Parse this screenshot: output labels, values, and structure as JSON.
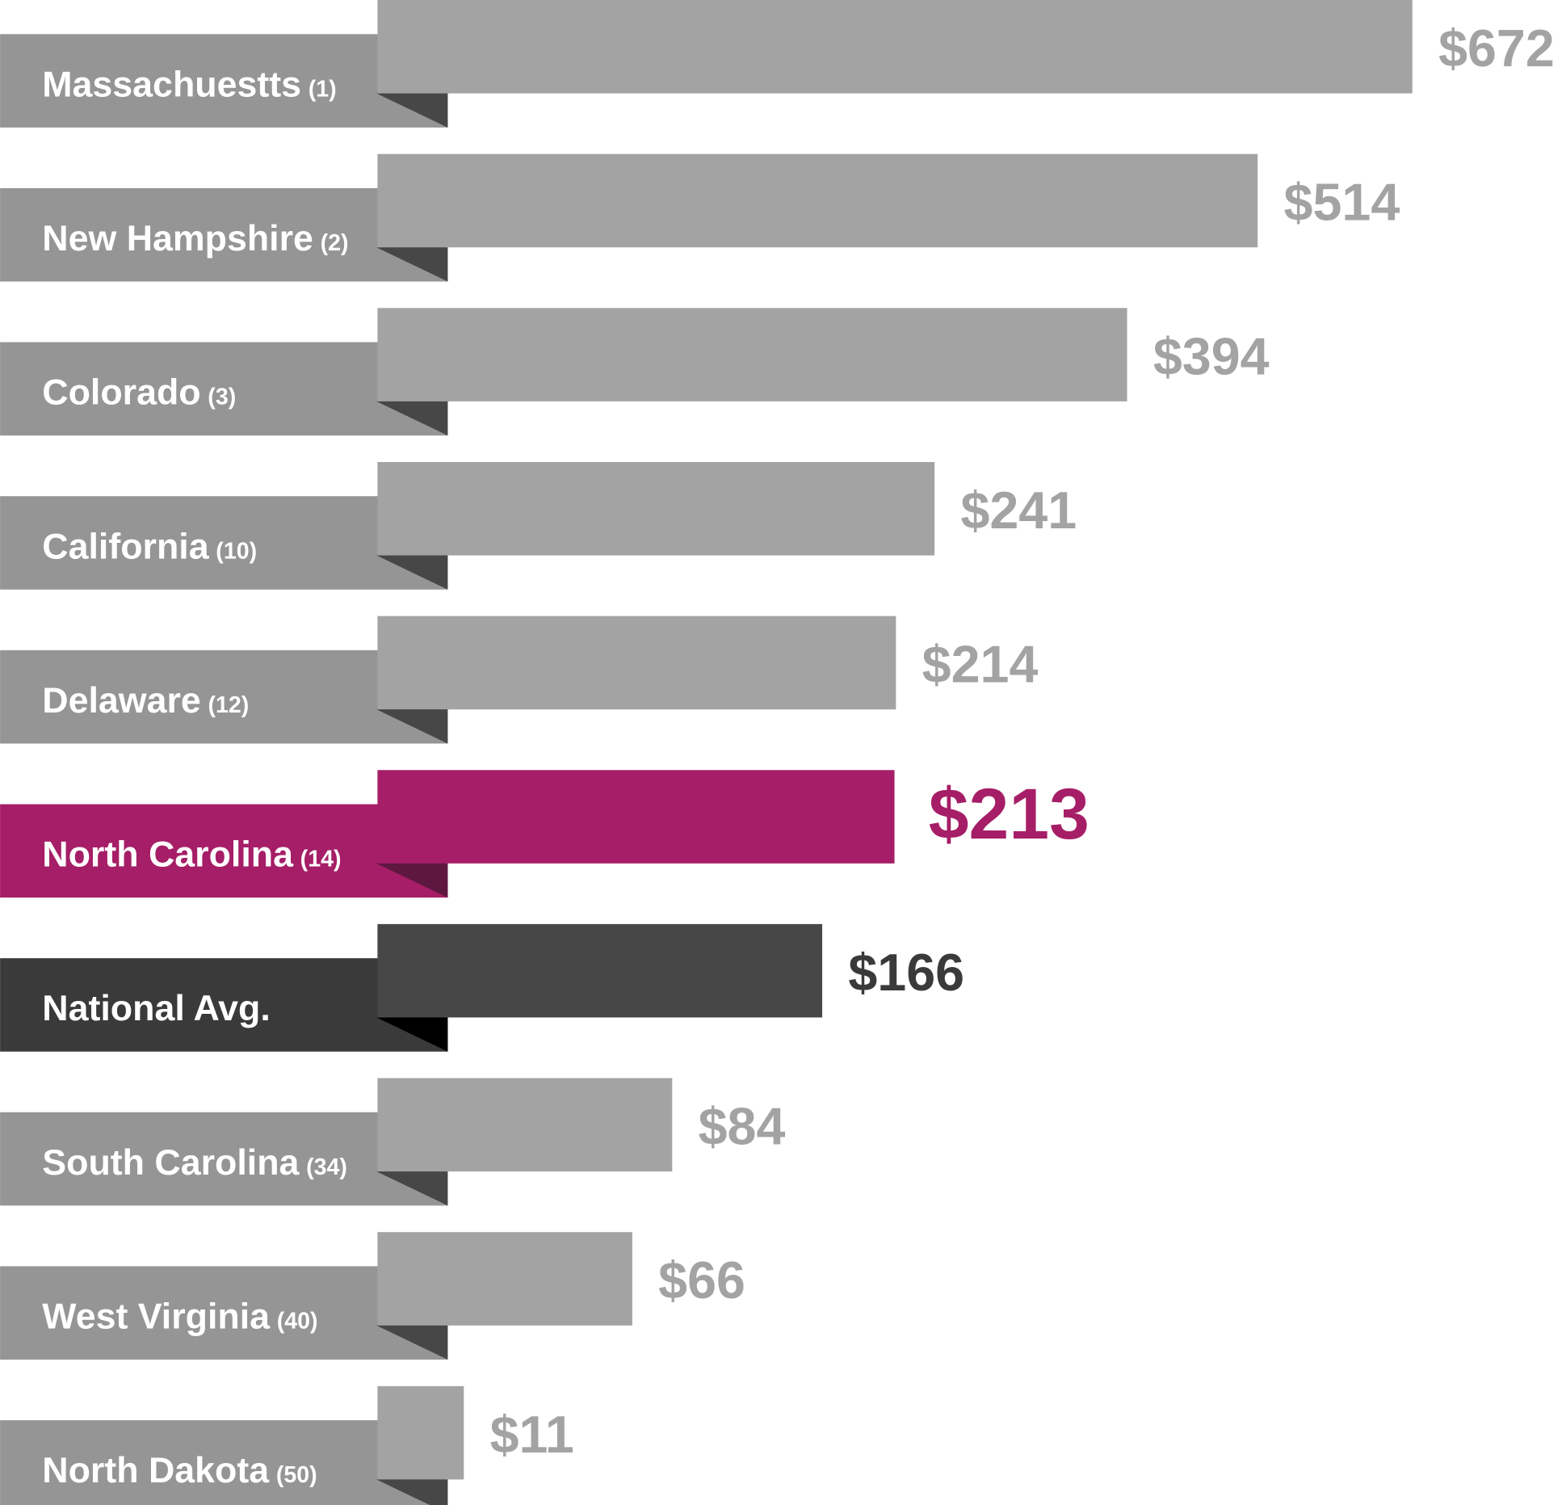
{
  "chart_data": {
    "type": "bar",
    "orientation": "horizontal",
    "title": "",
    "xlabel": "",
    "ylabel": "",
    "grid": false,
    "categories": [
      "Massachuestts",
      "New Hampshire",
      "Colorado",
      "California",
      "Delaware",
      "North Carolina",
      "National Avg.",
      "South Carolina",
      "West Virginia",
      "North Dakota"
    ],
    "ranks": [
      "(1)",
      "(2)",
      "(3)",
      "(10)",
      "(12)",
      "(14)",
      "",
      "(34)",
      "(40)",
      "(50)"
    ],
    "values": [
      672,
      514,
      394,
      241,
      214,
      213,
      166,
      84,
      66,
      11
    ],
    "value_labels": [
      "$672",
      "$514",
      "$394",
      "$241",
      "$214",
      "$213",
      "$166",
      "$84",
      "$66",
      "$11"
    ],
    "highlight": {
      "North Carolina": "#a61e67",
      "National Avg.": "#474747"
    },
    "colors": {
      "bar": "#a3a3a3",
      "label_box": "#959595",
      "fold": "#474747",
      "value_text": "#a3a3a3",
      "highlight_bar": "#a61e67",
      "highlight_fold": "#5e1840",
      "national_bar": "#474747",
      "national_label_box": "#3a3a3a",
      "national_fold": "#000000",
      "national_value_text": "#3a3a3a"
    }
  }
}
